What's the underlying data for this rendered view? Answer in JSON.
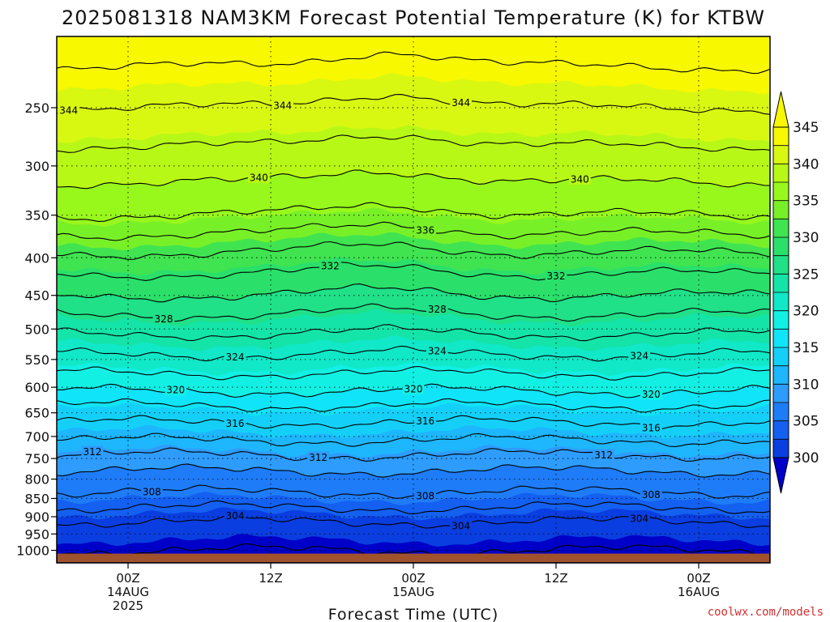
{
  "header": {
    "title": "2025081318 NAM3KM Forecast Potential Temperature (K) for KTBW"
  },
  "footer": {
    "credit": "coolwx.com/models"
  },
  "chart_data": {
    "type": "heatmap",
    "title": "2025081318 NAM3KM Forecast Potential Temperature (K) for KTBW",
    "xlabel": "Forecast Time (UTC)",
    "ylabel": "",
    "x_ticks": [
      {
        "lines": [
          "00Z",
          "14AUG",
          "2025"
        ],
        "hour": 6
      },
      {
        "lines": [
          "12Z"
        ],
        "hour": 18
      },
      {
        "lines": [
          "00Z",
          "15AUG"
        ],
        "hour": 30
      },
      {
        "lines": [
          "12Z"
        ],
        "hour": 42
      },
      {
        "lines": [
          "00Z",
          "16AUG"
        ],
        "hour": 54
      }
    ],
    "xlim": [
      0,
      60
    ],
    "y_scale": "log",
    "ylim": [
      1040,
      200
    ],
    "y_ticks": [
      250,
      300,
      350,
      400,
      450,
      500,
      550,
      600,
      650,
      700,
      750,
      800,
      850,
      900,
      950,
      1000
    ],
    "ground_pressure": 1000,
    "ground_color": "#a0522d",
    "levels": [
      300,
      302.5,
      305,
      307.5,
      310,
      312.5,
      315,
      317.5,
      320,
      322.5,
      325,
      327.5,
      330,
      332.5,
      335,
      337.5,
      340,
      342.5,
      345
    ],
    "fill_colors": [
      "#0000c8",
      "#0a3ee0",
      "#1460f0",
      "#1e7cf8",
      "#2e9cfc",
      "#1eb6fc",
      "#14d0f8",
      "#10e4f8",
      "#12f0e4",
      "#10e8c8",
      "#14e4a8",
      "#20e088",
      "#2ae06a",
      "#40e450",
      "#78f028",
      "#98f81c",
      "#b8f816",
      "#d8f812",
      "#f8f800"
    ],
    "colorbar_ticks": [
      300,
      305,
      310,
      315,
      320,
      325,
      330,
      335,
      340,
      345
    ],
    "contour_interval": 2,
    "profile": [
      {
        "p": 1000,
        "theta": 302.0
      },
      {
        "p": 950,
        "theta": 302.8
      },
      {
        "p": 900,
        "theta": 304.5
      },
      {
        "p": 850,
        "theta": 307.5
      },
      {
        "p": 800,
        "theta": 309.0
      },
      {
        "p": 750,
        "theta": 311.5
      },
      {
        "p": 700,
        "theta": 314.5
      },
      {
        "p": 650,
        "theta": 317.0
      },
      {
        "p": 600,
        "theta": 320.5
      },
      {
        "p": 550,
        "theta": 323.5
      },
      {
        "p": 500,
        "theta": 326.5
      },
      {
        "p": 450,
        "theta": 330.0
      },
      {
        "p": 400,
        "theta": 333.5
      },
      {
        "p": 350,
        "theta": 338.0
      },
      {
        "p": 300,
        "theta": 341.0
      },
      {
        "p": 250,
        "theta": 344.0
      },
      {
        "p": 200,
        "theta": 347.5
      }
    ],
    "contour_labels": [
      {
        "value": 344,
        "hour": 1.0
      },
      {
        "value": 344,
        "hour": 19.0
      },
      {
        "value": 344,
        "hour": 34.0
      },
      {
        "value": 340,
        "hour": 17.0
      },
      {
        "value": 340,
        "hour": 44.0
      },
      {
        "value": 336,
        "hour": 31.0
      },
      {
        "value": 332,
        "hour": 23.0
      },
      {
        "value": 332,
        "hour": 42.0
      },
      {
        "value": 328,
        "hour": 9.0
      },
      {
        "value": 328,
        "hour": 32.0
      },
      {
        "value": 324,
        "hour": 15.0
      },
      {
        "value": 324,
        "hour": 32.0
      },
      {
        "value": 324,
        "hour": 49.0
      },
      {
        "value": 320,
        "hour": 10.0
      },
      {
        "value": 320,
        "hour": 30.0
      },
      {
        "value": 320,
        "hour": 50.0
      },
      {
        "value": 316,
        "hour": 15.0
      },
      {
        "value": 316,
        "hour": 31.0
      },
      {
        "value": 316,
        "hour": 50.0
      },
      {
        "value": 312,
        "hour": 3.0
      },
      {
        "value": 312,
        "hour": 22.0
      },
      {
        "value": 312,
        "hour": 46.0
      },
      {
        "value": 308,
        "hour": 8.0
      },
      {
        "value": 308,
        "hour": 31.0
      },
      {
        "value": 308,
        "hour": 50.0
      },
      {
        "value": 304,
        "hour": 15.0
      },
      {
        "value": 304,
        "hour": 34.0
      },
      {
        "value": 304,
        "hour": 49.0
      }
    ]
  }
}
